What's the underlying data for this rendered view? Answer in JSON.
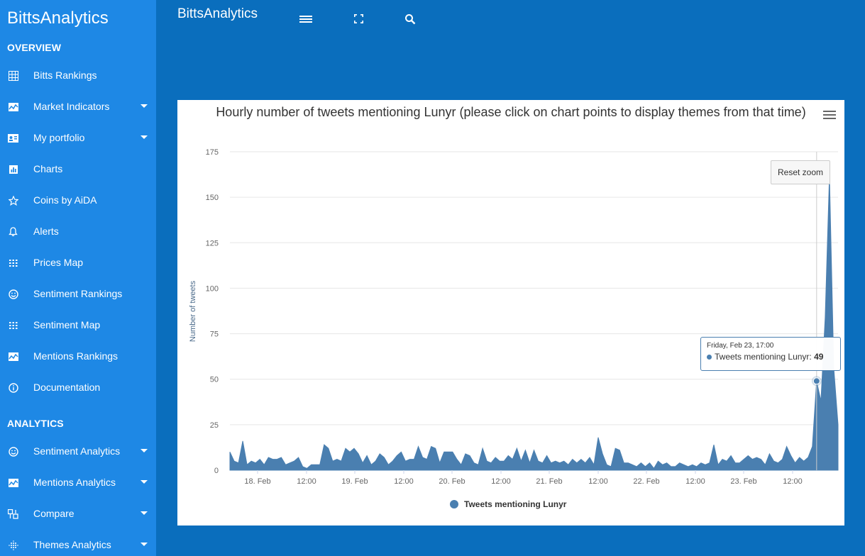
{
  "app": {
    "brand": "BittsAnalytics",
    "topbar_title": "BittsAnalytics"
  },
  "sidebar": {
    "sections": [
      {
        "label": "OVERVIEW"
      },
      {
        "label": "ANALYTICS"
      }
    ],
    "items": [
      {
        "label": "Bitts Rankings",
        "icon": "grid-icon",
        "dropdown": false
      },
      {
        "label": "Market Indicators",
        "icon": "chart-area-icon",
        "dropdown": true
      },
      {
        "label": "My portfolio",
        "icon": "id-card-icon",
        "dropdown": true
      },
      {
        "label": "Charts",
        "icon": "bar-chart-icon",
        "dropdown": false
      },
      {
        "label": "Coins by AiDA",
        "icon": "star-icon",
        "dropdown": false
      },
      {
        "label": "Alerts",
        "icon": "bell-icon",
        "dropdown": false
      },
      {
        "label": "Prices Map",
        "icon": "dots-grid-icon",
        "dropdown": false
      },
      {
        "label": "Sentiment Rankings",
        "icon": "smile-icon",
        "dropdown": false
      },
      {
        "label": "Sentiment Map",
        "icon": "dots-grid-icon",
        "dropdown": false
      },
      {
        "label": "Mentions Rankings",
        "icon": "chart-area-icon",
        "dropdown": false
      },
      {
        "label": "Documentation",
        "icon": "info-icon",
        "dropdown": false
      },
      {
        "label": "Sentiment Analytics",
        "icon": "smile-icon",
        "dropdown": true
      },
      {
        "label": "Mentions Analytics",
        "icon": "chart-area-icon",
        "dropdown": true
      },
      {
        "label": "Compare",
        "icon": "compare-icon",
        "dropdown": true
      },
      {
        "label": "Themes Analytics",
        "icon": "dots-circle-icon",
        "dropdown": true
      }
    ]
  },
  "topbar": {
    "icons": [
      "menu-icon",
      "fullscreen-icon",
      "search-icon"
    ]
  },
  "chart": {
    "title": "Hourly number of tweets mentioning Lunyr (please click on chart points to display themes from that time)",
    "reset_zoom_label": "Reset zoom",
    "tooltip": {
      "header": "Friday, Feb 23, 17:00",
      "series": "Tweets mentioning Lunyr:",
      "value": "49"
    },
    "legend_label": "Tweets mentioning Lunyr",
    "series_color": "#4a7fb0"
  },
  "chart_data": {
    "type": "area",
    "title": "Hourly number of tweets mentioning Lunyr (please click on chart points to display themes from that time)",
    "xlabel": "",
    "ylabel": "Number of tweets",
    "ylim": [
      0,
      175
    ],
    "y_ticks": [
      0,
      25,
      50,
      75,
      100,
      125,
      150,
      175
    ],
    "x_tick_labels": [
      "18. Feb",
      "12:00",
      "19. Feb",
      "12:00",
      "20. Feb",
      "12:00",
      "21. Feb",
      "12:00",
      "22. Feb",
      "12:00",
      "23. Feb",
      "12:00"
    ],
    "x_start": "Feb 17, 17:00",
    "x_step": "1 hour",
    "series": [
      {
        "name": "Tweets mentioning Lunyr",
        "values": [
          10,
          5,
          4,
          16,
          3,
          5,
          4,
          6,
          3,
          7,
          6,
          6,
          7,
          3,
          4,
          5,
          7,
          2,
          1,
          3,
          3,
          3,
          14,
          12,
          5,
          6,
          5,
          12,
          10,
          12,
          9,
          4,
          8,
          3,
          5,
          9,
          7,
          3,
          5,
          8,
          10,
          5,
          6,
          6,
          13,
          7,
          6,
          13,
          12,
          4,
          10,
          10,
          10,
          6,
          3,
          9,
          8,
          4,
          3,
          12,
          5,
          4,
          7,
          5,
          5,
          8,
          6,
          12,
          5,
          11,
          4,
          11,
          5,
          4,
          8,
          4,
          5,
          4,
          5,
          3,
          6,
          4,
          6,
          4,
          7,
          3,
          18,
          9,
          3,
          2,
          12,
          11,
          4,
          4,
          3,
          2,
          4,
          2,
          4,
          1,
          5,
          3,
          4,
          2,
          2,
          4,
          3,
          2,
          3,
          2,
          4,
          3,
          4,
          14,
          3,
          6,
          5,
          8,
          4,
          4,
          6,
          8,
          6,
          7,
          6,
          3,
          9,
          5,
          4,
          6,
          13,
          8,
          4,
          7,
          5,
          7,
          13,
          49,
          38,
          84,
          162,
          56,
          25
        ]
      }
    ],
    "highlighted_point": {
      "x": "Feb 23, 17:00",
      "y": 49
    },
    "legend": "bottom-center",
    "grid": true
  }
}
